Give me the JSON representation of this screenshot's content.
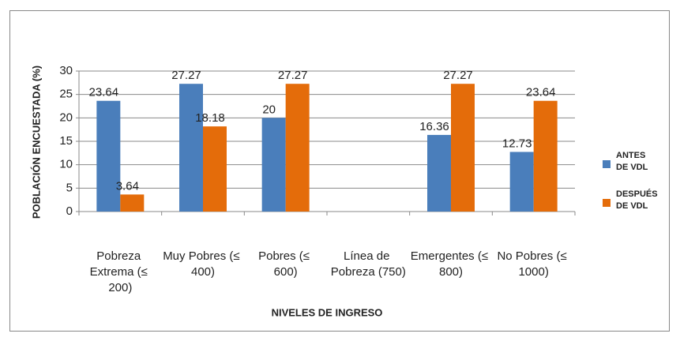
{
  "chart_data": {
    "type": "bar",
    "categories": [
      "Pobreza Extrema (≤ 200)",
      "Muy Pobres (≤ 400)",
      "Pobres (≤ 600)",
      "Línea de Pobreza (750)",
      "Emergentes (≤ 800)",
      "No Pobres (≤ 1000)"
    ],
    "series": [
      {
        "name": "ANTES DE VDL",
        "color": "#4a7ebb",
        "values": [
          23.64,
          27.27,
          20,
          null,
          16.36,
          12.73
        ]
      },
      {
        "name": "DESPUÉS DE VDL",
        "color": "#e46c0a",
        "values": [
          3.64,
          18.18,
          27.27,
          null,
          27.27,
          23.64
        ]
      }
    ],
    "x_label": "NIVELES DE INGRESO",
    "y_label": "POBLACIÓN ENCUESTADA (%)",
    "ylim": [
      0,
      30
    ],
    "yticks": [
      0,
      5,
      10,
      15,
      20,
      25,
      30
    ],
    "grid": true,
    "legend": "right"
  }
}
